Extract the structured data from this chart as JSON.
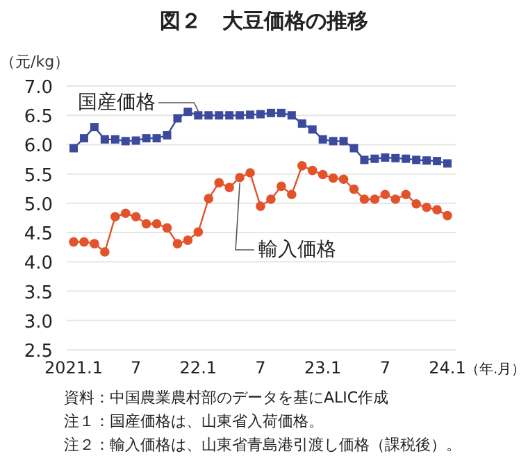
{
  "chart_data": {
    "type": "line",
    "title": "図２　大豆価格の推移",
    "ylabel": "（元/kg）",
    "xlabel": "（年.月）",
    "categories": [
      "2021.1",
      null,
      null,
      null,
      null,
      null,
      "7",
      null,
      null,
      null,
      null,
      null,
      "22.1",
      null,
      null,
      null,
      null,
      null,
      "7",
      null,
      null,
      null,
      null,
      null,
      "23.1",
      null,
      null,
      null,
      null,
      null,
      "7",
      null,
      null,
      null,
      null,
      null,
      "24.1"
    ],
    "series": [
      {
        "name": "国産価格",
        "color": "#3b4a9c",
        "marker": "square",
        "values": [
          5.94,
          6.11,
          6.3,
          6.09,
          6.09,
          6.06,
          6.07,
          6.11,
          6.11,
          6.16,
          6.45,
          6.56,
          6.5,
          6.5,
          6.5,
          6.5,
          6.5,
          6.51,
          6.52,
          6.54,
          6.54,
          6.5,
          6.36,
          6.26,
          6.09,
          6.06,
          6.06,
          5.94,
          5.74,
          5.76,
          5.78,
          5.77,
          5.76,
          5.74,
          5.73,
          5.72,
          5.68
        ]
      },
      {
        "name": "輸入価格",
        "color": "#e2532b",
        "marker": "circle",
        "values": [
          4.34,
          4.34,
          4.31,
          4.17,
          4.77,
          4.83,
          4.77,
          4.65,
          4.65,
          4.58,
          4.31,
          4.37,
          4.51,
          5.08,
          5.35,
          5.27,
          5.44,
          5.52,
          4.95,
          5.07,
          5.29,
          5.15,
          5.64,
          5.56,
          5.49,
          5.43,
          5.41,
          5.24,
          5.07,
          5.07,
          5.15,
          5.07,
          5.15,
          4.99,
          4.93,
          4.89,
          4.79
        ]
      }
    ],
    "ylim": [
      2.5,
      7.0
    ],
    "yticks": [
      {
        "value": 2.5,
        "label": "2.5"
      },
      {
        "value": 3,
        "label": "3.0"
      },
      {
        "value": 3.5,
        "label": "3.5"
      },
      {
        "value": 4,
        "label": "4.0"
      },
      {
        "value": 4.5,
        "label": "4.5"
      },
      {
        "value": 5,
        "label": "5.0"
      },
      {
        "value": 5.5,
        "label": "5.5"
      },
      {
        "value": 6,
        "label": "6.0"
      },
      {
        "value": 6.5,
        "label": "6.5"
      },
      {
        "value": 7,
        "label": "7.0"
      }
    ],
    "grid": "y",
    "annotations": [
      "資料：中国農業農村部のデータを基にALIC作成",
      "注１：国産価格は、山東省入荷価格。",
      "注２：輸入価格は、山東省青島港引渡し価格（課税後）。"
    ]
  }
}
